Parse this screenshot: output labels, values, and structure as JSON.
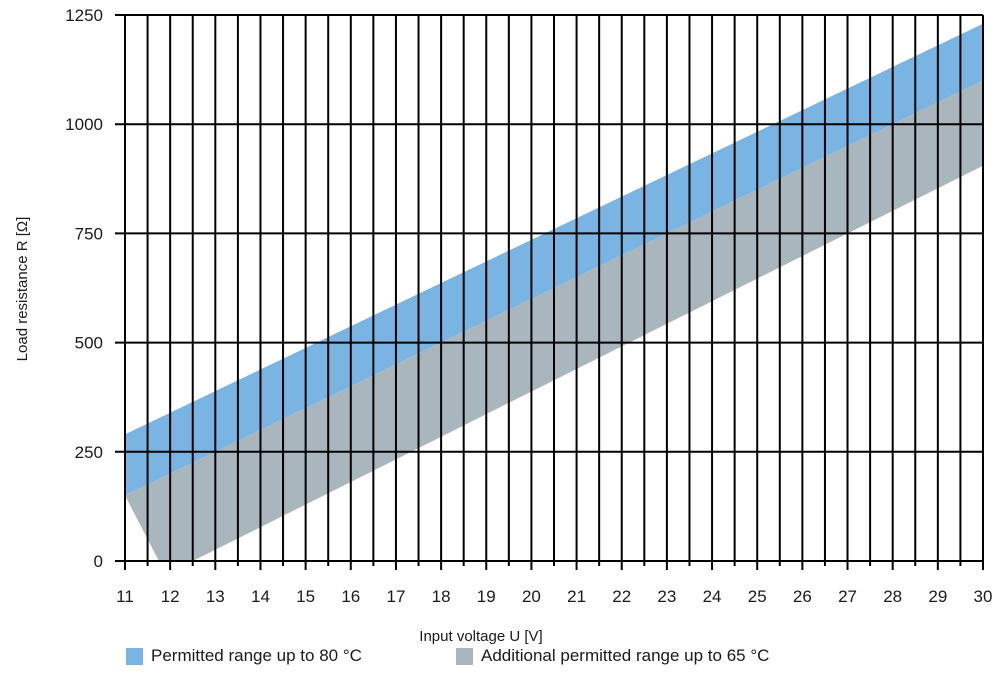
{
  "chart_data": {
    "type": "area",
    "xlabel": "Input voltage U [V]",
    "ylabel": "Load resistance R [Ω]",
    "x_ticks": [
      11,
      12,
      13,
      14,
      15,
      16,
      17,
      18,
      19,
      20,
      21,
      22,
      23,
      24,
      25,
      26,
      27,
      28,
      29,
      30
    ],
    "y_ticks": [
      0,
      250,
      500,
      750,
      1000,
      1250
    ],
    "xlim": [
      11,
      30
    ],
    "ylim": [
      0,
      1250
    ],
    "grid": true,
    "legend_position": "bottom",
    "series": [
      {
        "name": "Permitted range up to 80 °C",
        "color": "#7ab4e2",
        "upper": {
          "x": [
            11,
            30
          ],
          "y": [
            290,
            1230
          ]
        },
        "lower": {
          "x": [
            11,
            30
          ],
          "y": [
            150,
            1100
          ]
        }
      },
      {
        "name": "Additional permitted range up to 65 °C",
        "color": "#a9b6bd",
        "upper": {
          "x": [
            11,
            30
          ],
          "y": [
            150,
            1100
          ]
        },
        "lower": {
          "x": [
            11,
            11.75,
            12.5,
            30
          ],
          "y": [
            150,
            0,
            0,
            905
          ]
        }
      }
    ]
  }
}
